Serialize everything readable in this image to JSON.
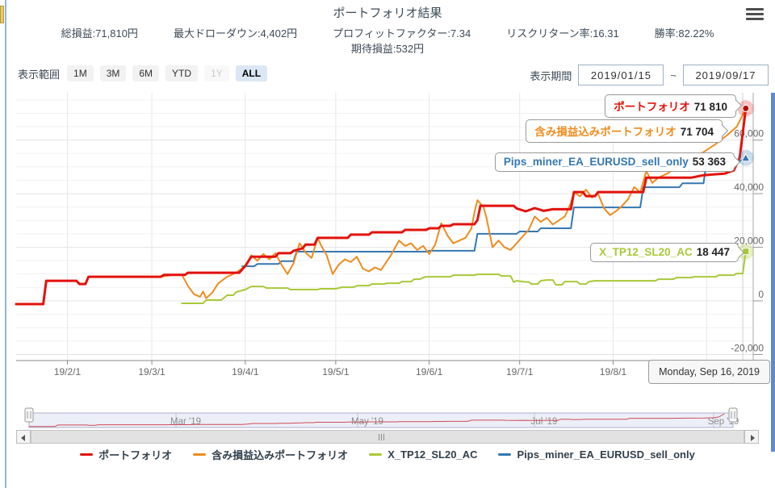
{
  "strings": {
    "colon": ":"
  },
  "header": {
    "title": "ポートフォリオ結果"
  },
  "stats_row1": [
    {
      "label": "総損益",
      "value": "71,810円"
    },
    {
      "label": "最大ドローダウン",
      "value": "4,402円"
    },
    {
      "label": "プロフィットファクター",
      "value": "7.34"
    },
    {
      "label": "リスクリターン率",
      "value": "16.31"
    },
    {
      "label": "勝率",
      "value": "82.22%"
    }
  ],
  "stats_row2": [
    {
      "label": "期待損益",
      "value": "532円"
    }
  ],
  "range_toolbar": {
    "label": "表示範囲",
    "buttons": [
      {
        "label": "1M",
        "state": "normal"
      },
      {
        "label": "3M",
        "state": "normal"
      },
      {
        "label": "6M",
        "state": "normal"
      },
      {
        "label": "YTD",
        "state": "normal"
      },
      {
        "label": "1Y",
        "state": "disabled"
      },
      {
        "label": "ALL",
        "state": "selected"
      }
    ]
  },
  "period": {
    "label": "表示期間",
    "from": "2019/01/15",
    "separator": "~",
    "to": "2019/09/17"
  },
  "chart": {
    "series_labels": [
      {
        "name": "ポートフォリオ",
        "value": "71 810",
        "color": "#e3120b"
      },
      {
        "name": "含み損益込みポートフォリオ",
        "value": "71 704",
        "color": "#ee8c1e"
      },
      {
        "name": "Pips_miner_EA_EURUSD_sell_only",
        "value": "53 363",
        "color": "#3577b1"
      },
      {
        "name": "X_TP12_SL20_AC",
        "value": "18 447",
        "color": "#a9c939"
      }
    ],
    "tooltip": "Monday, Sep 16, 2019",
    "y_axis": [
      {
        "v": 60000,
        "label": "60,000"
      },
      {
        "v": 40000,
        "label": "40,000"
      },
      {
        "v": 20000,
        "label": "20,000"
      },
      {
        "v": 0,
        "label": "0"
      },
      {
        "v": -20000,
        "label": "-20,000"
      }
    ],
    "x_axis": [
      {
        "d": 17,
        "label": "19/2/1"
      },
      {
        "d": 45,
        "label": "19/3/1"
      },
      {
        "d": 76,
        "label": "19/4/1"
      },
      {
        "d": 106,
        "label": "19/5/1"
      },
      {
        "d": 137,
        "label": "19/6/1"
      },
      {
        "d": 167,
        "label": "19/7/1"
      },
      {
        "d": 198,
        "label": "19/8/1"
      }
    ]
  },
  "navigator": {
    "labels": [
      "Mar '19",
      "May '19",
      "Jul '19",
      "Sep '19"
    ]
  },
  "legend": [
    {
      "label": "ポートフォリオ",
      "color": "#e3120b"
    },
    {
      "label": "含み損益込みポートフォリオ",
      "color": "#ee8c1e"
    },
    {
      "label": "X_TP12_SL20_AC",
      "color": "#a9c939"
    },
    {
      "label": "Pips_miner_EA_EURUSD_sell_only",
      "color": "#3577b1"
    }
  ],
  "chart_data": {
    "type": "line",
    "x_unit": "days since 2019-01-15",
    "x_range": [
      0,
      245
    ],
    "ylim": [
      -22000,
      78000
    ],
    "y_ticks": [
      -20000,
      0,
      20000,
      40000,
      60000
    ],
    "series": [
      {
        "name": "ポートフォリオ",
        "color": "#e3120b",
        "width": 3,
        "marker": "circle",
        "final": 71810,
        "points": [
          [
            0,
            -1200
          ],
          [
            9,
            -1200
          ],
          [
            10,
            7500
          ],
          [
            20,
            7500
          ],
          [
            21,
            6300
          ],
          [
            23,
            6300
          ],
          [
            24,
            9000
          ],
          [
            48,
            9000
          ],
          [
            49,
            9700
          ],
          [
            56,
            9700
          ],
          [
            57,
            10500
          ],
          [
            74,
            10500
          ],
          [
            76,
            13000
          ],
          [
            78,
            16500
          ],
          [
            86,
            16500
          ],
          [
            87,
            17800
          ],
          [
            91,
            17800
          ],
          [
            92,
            18700
          ],
          [
            95,
            19600
          ],
          [
            96,
            21000
          ],
          [
            99,
            21000
          ],
          [
            100,
            23500
          ],
          [
            110,
            23500
          ],
          [
            111,
            24700
          ],
          [
            117,
            24700
          ],
          [
            118,
            25600
          ],
          [
            128,
            25600
          ],
          [
            129,
            26500
          ],
          [
            136,
            26500
          ],
          [
            137,
            27100
          ],
          [
            140,
            27100
          ],
          [
            141,
            28000
          ],
          [
            144,
            28000
          ],
          [
            145,
            28600
          ],
          [
            152,
            28600
          ],
          [
            153,
            30100
          ],
          [
            154,
            35500
          ],
          [
            165,
            35500
          ],
          [
            166,
            34500
          ],
          [
            169,
            33400
          ],
          [
            172,
            34600
          ],
          [
            175,
            33600
          ],
          [
            178,
            34200
          ],
          [
            184,
            34200
          ],
          [
            185,
            40600
          ],
          [
            188,
            40600
          ],
          [
            189,
            39100
          ],
          [
            192,
            39100
          ],
          [
            193,
            40600
          ],
          [
            208,
            40600
          ],
          [
            209,
            46000
          ],
          [
            224,
            46000
          ],
          [
            228,
            46900
          ],
          [
            235,
            47500
          ],
          [
            238,
            48700
          ],
          [
            239,
            51000
          ],
          [
            240,
            53500
          ],
          [
            242,
            71810
          ]
        ]
      },
      {
        "name": "含み損益込みポートフォリオ",
        "color": "#ee8c1e",
        "width": 2,
        "marker": "none",
        "final": 71704,
        "points": [
          [
            0,
            -1200
          ],
          [
            9,
            -1200
          ],
          [
            10,
            7500
          ],
          [
            20,
            7500
          ],
          [
            21,
            6300
          ],
          [
            23,
            6300
          ],
          [
            24,
            9000
          ],
          [
            48,
            9000
          ],
          [
            52,
            9700
          ],
          [
            55,
            9700
          ],
          [
            57,
            5500
          ],
          [
            59,
            2500
          ],
          [
            61,
            1500
          ],
          [
            62,
            3500
          ],
          [
            63,
            1000
          ],
          [
            65,
            3000
          ],
          [
            67,
            6500
          ],
          [
            70,
            9000
          ],
          [
            73,
            10500
          ],
          [
            76,
            13000
          ],
          [
            78,
            17000
          ],
          [
            80,
            15000
          ],
          [
            82,
            17500
          ],
          [
            84,
            15500
          ],
          [
            86,
            17800
          ],
          [
            88,
            13500
          ],
          [
            90,
            10000
          ],
          [
            92,
            14000
          ],
          [
            94,
            21500
          ],
          [
            96,
            18000
          ],
          [
            98,
            16000
          ],
          [
            100,
            23500
          ],
          [
            101,
            21000
          ],
          [
            103,
            17000
          ],
          [
            105,
            10000
          ],
          [
            107,
            13500
          ],
          [
            109,
            15500
          ],
          [
            111,
            14500
          ],
          [
            113,
            16500
          ],
          [
            115,
            12000
          ],
          [
            117,
            11000
          ],
          [
            119,
            12500
          ],
          [
            121,
            11500
          ],
          [
            124,
            16500
          ],
          [
            127,
            22500
          ],
          [
            129,
            20500
          ],
          [
            131,
            21500
          ],
          [
            133,
            19000
          ],
          [
            135,
            20500
          ],
          [
            137,
            17500
          ],
          [
            139,
            21000
          ],
          [
            141,
            29000
          ],
          [
            143,
            24500
          ],
          [
            145,
            21500
          ],
          [
            147,
            22500
          ],
          [
            149,
            23500
          ],
          [
            151,
            27000
          ],
          [
            152,
            33000
          ],
          [
            153,
            37600
          ],
          [
            155,
            35000
          ],
          [
            156,
            31000
          ],
          [
            158,
            20000
          ],
          [
            160,
            22500
          ],
          [
            162,
            20000
          ],
          [
            164,
            19000
          ],
          [
            166,
            21500
          ],
          [
            168,
            24000
          ],
          [
            170,
            26500
          ],
          [
            172,
            31500
          ],
          [
            174,
            29500
          ],
          [
            176,
            31000
          ],
          [
            178,
            28500
          ],
          [
            180,
            30000
          ],
          [
            182,
            31500
          ],
          [
            184,
            36500
          ],
          [
            185,
            40600
          ],
          [
            187,
            39000
          ],
          [
            189,
            41500
          ],
          [
            191,
            38500
          ],
          [
            193,
            40000
          ],
          [
            195,
            34500
          ],
          [
            197,
            32000
          ],
          [
            199,
            33500
          ],
          [
            201,
            35500
          ],
          [
            203,
            38000
          ],
          [
            205,
            42500
          ],
          [
            207,
            40500
          ],
          [
            209,
            48500
          ],
          [
            211,
            44000
          ],
          [
            213,
            46000
          ],
          [
            216,
            47500
          ],
          [
            220,
            50500
          ],
          [
            224,
            53000
          ],
          [
            228,
            55500
          ],
          [
            232,
            58500
          ],
          [
            236,
            62000
          ],
          [
            239,
            65000
          ],
          [
            242,
            71704
          ]
        ]
      },
      {
        "name": "X_TP12_SL20_AC",
        "color": "#a9c939",
        "width": 2,
        "marker": "square",
        "final": 18447,
        "points": [
          [
            55,
            -900
          ],
          [
            62,
            -900
          ],
          [
            63,
            300
          ],
          [
            68,
            300
          ],
          [
            69,
            1200
          ],
          [
            70,
            2100
          ],
          [
            72,
            2100
          ],
          [
            73,
            3300
          ],
          [
            76,
            4200
          ],
          [
            78,
            5400
          ],
          [
            82,
            5400
          ],
          [
            83,
            4800
          ],
          [
            90,
            4800
          ],
          [
            91,
            4200
          ],
          [
            100,
            4200
          ],
          [
            101,
            4500
          ],
          [
            106,
            4500
          ],
          [
            108,
            5100
          ],
          [
            112,
            5100
          ],
          [
            113,
            5700
          ],
          [
            117,
            5700
          ],
          [
            118,
            6300
          ],
          [
            122,
            6300
          ],
          [
            123,
            6600
          ],
          [
            127,
            6600
          ],
          [
            128,
            7200
          ],
          [
            131,
            7200
          ],
          [
            132,
            8100
          ],
          [
            134,
            8100
          ],
          [
            135,
            8700
          ],
          [
            136,
            9000
          ],
          [
            144,
            9000
          ],
          [
            145,
            9600
          ],
          [
            152,
            9600
          ],
          [
            153,
            9900
          ],
          [
            160,
            9900
          ],
          [
            161,
            9300
          ],
          [
            164,
            9300
          ],
          [
            165,
            7000
          ],
          [
            166,
            7500
          ],
          [
            168,
            7200
          ],
          [
            170,
            7000
          ],
          [
            171,
            6300
          ],
          [
            173,
            6300
          ],
          [
            174,
            7500
          ],
          [
            176,
            7800
          ],
          [
            178,
            7800
          ],
          [
            179,
            6000
          ],
          [
            181,
            6000
          ],
          [
            182,
            7200
          ],
          [
            186,
            7200
          ],
          [
            187,
            6300
          ],
          [
            189,
            6300
          ],
          [
            190,
            7200
          ],
          [
            192,
            7500
          ],
          [
            212,
            7500
          ],
          [
            213,
            8100
          ],
          [
            218,
            8100
          ],
          [
            219,
            8700
          ],
          [
            224,
            8700
          ],
          [
            225,
            9000
          ],
          [
            232,
            9000
          ],
          [
            233,
            9600
          ],
          [
            238,
            9600
          ],
          [
            239,
            10200
          ],
          [
            241,
            10200
          ],
          [
            242,
            18447
          ]
        ]
      },
      {
        "name": "Pips_miner_EA_EURUSD_sell_only",
        "color": "#3577b1",
        "width": 2,
        "marker": "triangle",
        "final": 53363,
        "points": [
          [
            75,
            12900
          ],
          [
            79,
            12900
          ],
          [
            80,
            13800
          ],
          [
            87,
            13800
          ],
          [
            88,
            14800
          ],
          [
            92,
            14800
          ],
          [
            93,
            18350
          ],
          [
            136,
            18350
          ],
          [
            137,
            18700
          ],
          [
            152,
            18700
          ],
          [
            153,
            25000
          ],
          [
            166,
            25000
          ],
          [
            167,
            25900
          ],
          [
            173,
            25900
          ],
          [
            174,
            27100
          ],
          [
            184,
            27100
          ],
          [
            185,
            34900
          ],
          [
            207,
            34900
          ],
          [
            208,
            42400
          ],
          [
            220,
            42400
          ],
          [
            221,
            43900
          ],
          [
            228,
            43900
          ],
          [
            229,
            52000
          ],
          [
            240,
            52000
          ],
          [
            242,
            53363
          ]
        ]
      }
    ]
  }
}
